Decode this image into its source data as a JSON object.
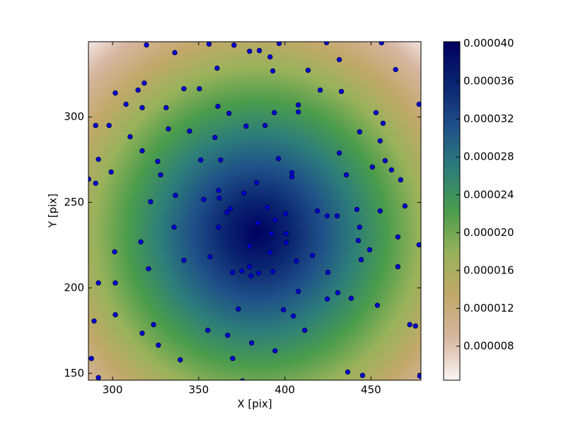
{
  "chart_data": {
    "type": "scatter",
    "x_label": "X [pix]",
    "y_label": "Y [pix]",
    "xlim": [
      286,
      479
    ],
    "ylim": [
      146,
      344
    ],
    "xticks": [
      300,
      350,
      400,
      450
    ],
    "yticks": [
      150,
      200,
      250,
      300
    ],
    "point_color": "#0000cc",
    "colormap": [
      "#000060",
      "#0a2470",
      "#1f5088",
      "#2d7e7a",
      "#4a9c4c",
      "#98b25a",
      "#c2a86a",
      "#d6b6a0",
      "#fbf4f4"
    ],
    "clim": [
      4.4e-06,
      4.02e-05
    ],
    "cticks": [
      {
        "value": 8e-06,
        "label": "0.000008"
      },
      {
        "value": 1.2e-05,
        "label": "0.000012"
      },
      {
        "value": 1.6e-05,
        "label": "0.000016"
      },
      {
        "value": 2e-05,
        "label": "0.000020"
      },
      {
        "value": 2.4e-05,
        "label": "0.000024"
      },
      {
        "value": 2.8e-05,
        "label": "0.000028"
      },
      {
        "value": 3.2e-05,
        "label": "0.000032"
      },
      {
        "value": 3.6e-05,
        "label": "0.000036"
      },
      {
        "value": 4e-05,
        "label": "0.000040"
      }
    ],
    "x": [
      319.7,
      356,
      370.5,
      379.5,
      385.2,
      396.7,
      424.2,
      456.1,
      336.1,
      391.4,
      413.5,
      431.6,
      464.3,
      360.7,
      393,
      318.4,
      314.8,
      341.4,
      350.4,
      301.6,
      307.8,
      317.2,
      331.1,
      361.1,
      367.6,
      407.8,
      407.8,
      420.5,
      432.8,
      393.9,
      290.2,
      298,
      310.2,
      332.4,
      344.7,
      359.4,
      388.5,
      377.5,
      452.9,
      457,
      443.4,
      455.3,
      431.6,
      317.2,
      291.8,
      326.2,
      362.7,
      351.2,
      396.3,
      458.2,
      450.8,
      461.9,
      299.2,
      290.2,
      327.9,
      404.1,
      404.1,
      435.7,
      467.2,
      383.6,
      361.5,
      361.9,
      352.9,
      336.5,
      366.4,
      368.4,
      376.2,
      389.8,
      400.4,
      418.9,
      424.6,
      430.3,
      441.8,
      455.3,
      469.7,
      322.1,
      394.3,
      384.4,
      361.5,
      335.7,
      392.2,
      400.8,
      400.8,
      379.5,
      443.4,
      477.9,
      442.6,
      465.6,
      391.4,
      356.6,
      316.4,
      301.2,
      341.4,
      320.9,
      369.7,
      375,
      379.5,
      384.8,
      393,
      380.3,
      406.6,
      416,
      425,
      449.2,
      444.3,
      465.6,
      301.6,
      291.8,
      407.8,
      399.2,
      404.9,
      411.5,
      430.7,
      424.6,
      438.5,
      453.7,
      317.2,
      323.8,
      301.6,
      373,
      355.3,
      366.8,
      380.7,
      394.3,
      326.6,
      289.3,
      287.7,
      339.3,
      369.7,
      291.8,
      375.4,
      436.5,
      445.1,
      472.5,
      475.8,
      478.3,
      477.9,
      286.1
    ],
    "y": [
      342.1,
      342.6,
      342,
      338.4,
      338.8,
      343,
      343.5,
      343.4,
      337.6,
      335.1,
      327.3,
      333.5,
      327.7,
      328.5,
      326.9,
      319.8,
      315.7,
      316.5,
      316.5,
      314,
      307.4,
      305.4,
      305.4,
      306.2,
      302.1,
      307,
      302.9,
      315.7,
      314.9,
      302.5,
      295,
      295,
      288.4,
      293,
      291.7,
      288,
      295,
      294.6,
      302.5,
      296.3,
      291.3,
      286,
      278.9,
      280.2,
      275.2,
      274,
      274.8,
      274.8,
      275.6,
      274.4,
      270.7,
      269,
      267.8,
      261.2,
      266.1,
      267.4,
      264.9,
      266.1,
      263.2,
      261.6,
      257,
      252.5,
      251.7,
      254.1,
      244.2,
      246.3,
      255.4,
      247.1,
      243.4,
      245,
      242.1,
      242.1,
      245.9,
      245,
      247.9,
      250.4,
      239.7,
      238,
      235.5,
      235.5,
      231.8,
      231.8,
      226.5,
      224.4,
      235.5,
      225.2,
      227.7,
      229.8,
      220.7,
      218.2,
      226.9,
      221.1,
      216.1,
      211.2,
      209.1,
      209.9,
      212.4,
      208.7,
      209.5,
      207.1,
      215.7,
      219,
      209.1,
      222.3,
      216.5,
      212.4,
      202.9,
      202.9,
      198,
      187.2,
      183.5,
      175.2,
      197.2,
      193.5,
      193.9,
      189.8,
      173.5,
      178.5,
      184.3,
      187.6,
      175.2,
      172.3,
      167.8,
      163.2,
      166.5,
      180.6,
      158.7,
      157.9,
      158.7,
      147.5,
      145.5,
      150.8,
      148.8,
      178.5,
      177.7,
      148.4,
      307.4,
      263.6
    ]
  }
}
